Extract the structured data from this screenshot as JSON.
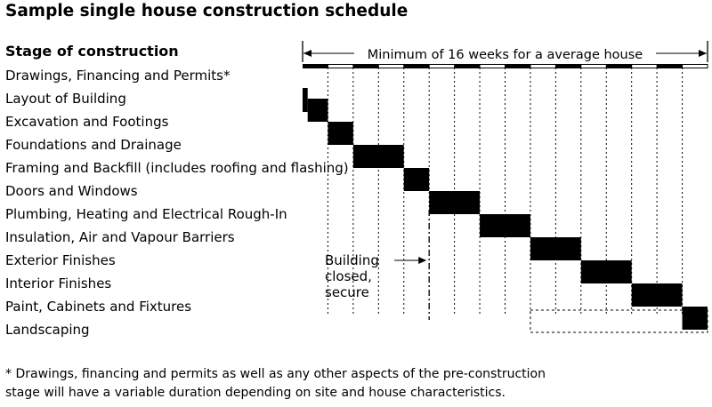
{
  "title": "Sample single house construction schedule",
  "stage_header": "Stage of construction",
  "duration_label": "Minimum of 16 weeks for a average house",
  "closed_label": [
    "Building",
    "closed,",
    "secure"
  ],
  "footnote": [
    "* Drawings, financing and permits as well as any other aspects of the pre-construction",
    "stage will have a variable duration depending on site and house characteristics."
  ],
  "chart_data": {
    "type": "gantt",
    "time_unit": "week",
    "total_weeks": 16,
    "building_closed_after_week": 5,
    "tasks": [
      {
        "name": "Drawings, Financing and Permits*",
        "start": 0,
        "end": 16,
        "style": "alternating-header"
      },
      {
        "name": "Layout of Building",
        "start": 0,
        "end": 0.2,
        "style": "solid"
      },
      {
        "name": "Excavation and Footings",
        "start": 0.2,
        "end": 1,
        "style": "solid"
      },
      {
        "name": "Foundations and Drainage",
        "start": 1,
        "end": 2,
        "style": "solid"
      },
      {
        "name": "Framing and Backfill (includes roofing and flashing)",
        "start": 2,
        "end": 4,
        "style": "solid"
      },
      {
        "name": "Doors and Windows",
        "start": 4,
        "end": 5,
        "style": "solid"
      },
      {
        "name": "Plumbing, Heating and Electrical Rough-In",
        "start": 5,
        "end": 7,
        "style": "solid"
      },
      {
        "name": "Insulation,  Air and Vapour Barriers",
        "start": 7,
        "end": 9,
        "style": "solid"
      },
      {
        "name": "Exterior Finishes",
        "start": 9,
        "end": 11,
        "style": "solid"
      },
      {
        "name": "Interior Finishes",
        "start": 11,
        "end": 13,
        "style": "solid"
      },
      {
        "name": "Paint, Cabinets and Fixtures",
        "start": 13,
        "end": 15,
        "style": "solid"
      },
      {
        "name": "Landscaping",
        "start": 15,
        "end": 16,
        "style": "solid",
        "variable_start": 9
      }
    ]
  }
}
